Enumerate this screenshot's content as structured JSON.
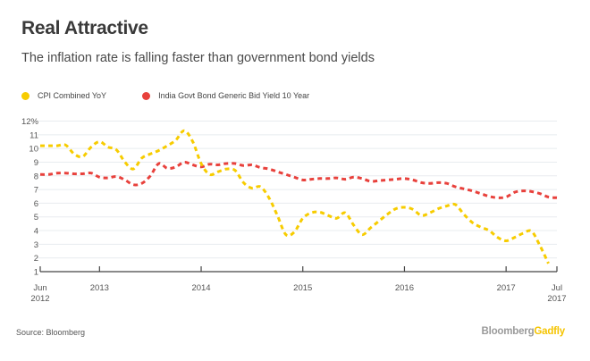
{
  "header": {
    "title": "Real Attractive",
    "subtitle": "The inflation rate is falling faster than government bond yields"
  },
  "legend": [
    {
      "label": "CPI Combined YoY",
      "color": "#f7cc00"
    },
    {
      "label": "India Govt Bond Generic Bid Yield 10 Year",
      "color": "#e8413c"
    }
  ],
  "footer": {
    "source": "Source: Bloomberg",
    "brand_part1": "Bloomberg",
    "brand_part2": "Gadfly"
  },
  "chart_data": {
    "type": "line",
    "title": "Real Attractive",
    "subtitle": "The inflation rate is falling faster than government bond yields",
    "xlabel": "",
    "ylabel": "",
    "ylim": [
      1,
      12
    ],
    "yticks": [
      {
        "value": 12,
        "label": "12%"
      },
      {
        "value": 11,
        "label": "11"
      },
      {
        "value": 10,
        "label": "10"
      },
      {
        "value": 9,
        "label": "9"
      },
      {
        "value": 8,
        "label": "8"
      },
      {
        "value": 7,
        "label": "7"
      },
      {
        "value": 6,
        "label": "6"
      },
      {
        "value": 5,
        "label": "5"
      },
      {
        "value": 4,
        "label": "4"
      },
      {
        "value": 3,
        "label": "3"
      },
      {
        "value": 2,
        "label": "2"
      },
      {
        "value": 1,
        "label": "1"
      }
    ],
    "x_start": "2012-06",
    "x_end": "2017-07",
    "xticks": [
      {
        "month_index": 0,
        "label": [
          "Jun",
          "2012"
        ]
      },
      {
        "month_index": 7,
        "label": [
          "2013"
        ]
      },
      {
        "month_index": 19,
        "label": [
          "2014"
        ]
      },
      {
        "month_index": 31,
        "label": [
          "2015"
        ]
      },
      {
        "month_index": 43,
        "label": [
          "2016"
        ]
      },
      {
        "month_index": 55,
        "label": [
          "2017"
        ]
      },
      {
        "month_index": 61,
        "label": [
          "Jul",
          "2017"
        ]
      }
    ],
    "grid": true,
    "legend_position": "top-left",
    "x": [
      "2012-06",
      "2012-07",
      "2012-08",
      "2012-09",
      "2012-10",
      "2012-11",
      "2012-12",
      "2013-01",
      "2013-02",
      "2013-03",
      "2013-04",
      "2013-05",
      "2013-06",
      "2013-07",
      "2013-08",
      "2013-09",
      "2013-10",
      "2013-11",
      "2013-12",
      "2014-01",
      "2014-02",
      "2014-03",
      "2014-04",
      "2014-05",
      "2014-06",
      "2014-07",
      "2014-08",
      "2014-09",
      "2014-10",
      "2014-11",
      "2014-12",
      "2015-01",
      "2015-02",
      "2015-03",
      "2015-04",
      "2015-05",
      "2015-06",
      "2015-07",
      "2015-08",
      "2015-09",
      "2015-10",
      "2015-11",
      "2015-12",
      "2016-01",
      "2016-02",
      "2016-03",
      "2016-04",
      "2016-05",
      "2016-06",
      "2016-07",
      "2016-08",
      "2016-09",
      "2016-10",
      "2016-11",
      "2016-12",
      "2017-01",
      "2017-02",
      "2017-03",
      "2017-04",
      "2017-05",
      "2017-06",
      "2017-07"
    ],
    "series": [
      {
        "name": "CPI Combined YoY",
        "color": "#f7cc00",
        "values": [
          10.2,
          10.2,
          10.2,
          10.25,
          9.6,
          9.4,
          10.1,
          10.5,
          10.1,
          9.9,
          9.0,
          8.5,
          9.3,
          9.6,
          9.85,
          10.2,
          10.6,
          11.3,
          10.5,
          8.9,
          8.1,
          8.3,
          8.5,
          8.4,
          7.5,
          7.1,
          7.2,
          6.4,
          5.1,
          3.7,
          3.9,
          4.9,
          5.3,
          5.35,
          5.1,
          4.9,
          5.3,
          4.4,
          3.7,
          4.2,
          4.7,
          5.2,
          5.6,
          5.7,
          5.55,
          5.1,
          5.3,
          5.6,
          5.8,
          5.9,
          5.2,
          4.6,
          4.25,
          4.0,
          3.5,
          3.25,
          3.5,
          3.8,
          3.95,
          2.9,
          1.6,
          null
        ]
      },
      {
        "name": "India Govt Bond Generic Bid Yield 10 Year",
        "color": "#e8413c",
        "values": [
          8.1,
          8.1,
          8.2,
          8.2,
          8.15,
          8.15,
          8.2,
          7.9,
          7.85,
          7.95,
          7.7,
          7.35,
          7.45,
          8.0,
          8.9,
          8.55,
          8.65,
          9.0,
          8.8,
          8.65,
          8.85,
          8.8,
          8.9,
          8.9,
          8.75,
          8.8,
          8.6,
          8.5,
          8.3,
          8.1,
          7.9,
          7.7,
          7.75,
          7.8,
          7.8,
          7.85,
          7.75,
          7.9,
          7.8,
          7.6,
          7.65,
          7.7,
          7.75,
          7.8,
          7.7,
          7.5,
          7.45,
          7.5,
          7.45,
          7.2,
          7.05,
          6.9,
          6.7,
          6.5,
          6.4,
          6.45,
          6.8,
          6.9,
          6.85,
          6.7,
          6.45,
          6.4
        ]
      }
    ]
  }
}
